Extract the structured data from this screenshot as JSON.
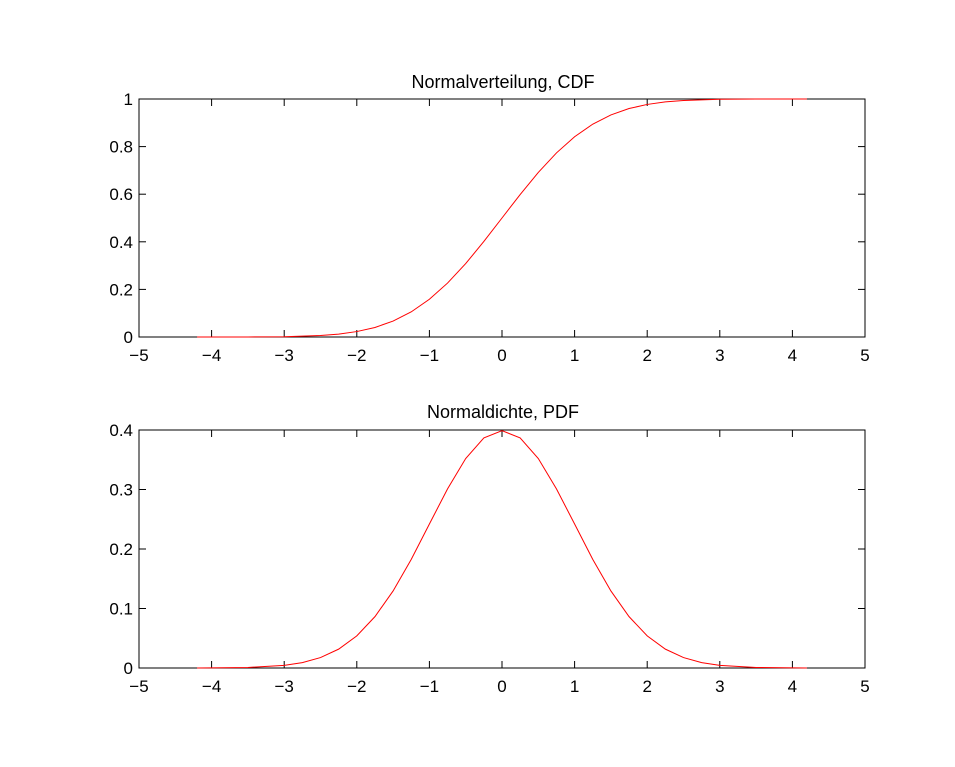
{
  "chart_data": [
    {
      "type": "line",
      "title": "Normalverteilung, CDF",
      "xlabel": "",
      "ylabel": "",
      "xlim": [
        -5,
        5
      ],
      "ylim": [
        0,
        1
      ],
      "grid": false,
      "x_ticks": [
        -5,
        -4,
        -3,
        -2,
        -1,
        0,
        1,
        2,
        3,
        4,
        5
      ],
      "x_tick_labels": [
        "−5",
        "−4",
        "−3",
        "−2",
        "−1",
        "0",
        "1",
        "2",
        "3",
        "4",
        "5"
      ],
      "y_ticks": [
        0,
        0.2,
        0.4,
        0.6,
        0.8,
        1
      ],
      "y_tick_labels": [
        "0",
        "0.2",
        "0.4",
        "0.6",
        "0.8",
        "1"
      ],
      "series": [
        {
          "color": "#ff0000",
          "x": [
            -4.2,
            -3.5,
            -3,
            -2.5,
            -2.25,
            -2,
            -1.75,
            -1.5,
            -1.25,
            -1,
            -0.75,
            -0.5,
            -0.25,
            0,
            0.25,
            0.5,
            0.75,
            1,
            1.25,
            1.5,
            1.75,
            2,
            2.25,
            2.5,
            3,
            3.5,
            4.2
          ],
          "y": [
            0.0,
            0.0002,
            0.0013,
            0.0062,
            0.0122,
            0.0228,
            0.0401,
            0.0668,
            0.1056,
            0.1587,
            0.2266,
            0.3085,
            0.4013,
            0.5,
            0.5987,
            0.6915,
            0.7734,
            0.8413,
            0.8944,
            0.9332,
            0.9599,
            0.9772,
            0.9878,
            0.9938,
            0.9987,
            0.9998,
            1.0
          ]
        }
      ]
    },
    {
      "type": "line",
      "title": "Normaldichte, PDF",
      "xlabel": "",
      "ylabel": "",
      "xlim": [
        -5,
        5
      ],
      "ylim": [
        0,
        0.4
      ],
      "grid": false,
      "x_ticks": [
        -5,
        -4,
        -3,
        -2,
        -1,
        0,
        1,
        2,
        3,
        4,
        5
      ],
      "x_tick_labels": [
        "−5",
        "−4",
        "−3",
        "−2",
        "−1",
        "0",
        "1",
        "2",
        "3",
        "4",
        "5"
      ],
      "y_ticks": [
        0,
        0.1,
        0.2,
        0.3,
        0.4
      ],
      "y_tick_labels": [
        "0",
        "0.1",
        "0.2",
        "0.3",
        "0.4"
      ],
      "series": [
        {
          "color": "#ff0000",
          "x": [
            -4.2,
            -3.5,
            -3,
            -2.75,
            -2.5,
            -2.25,
            -2,
            -1.75,
            -1.5,
            -1.25,
            -1,
            -0.75,
            -0.5,
            -0.25,
            0,
            0.25,
            0.5,
            0.75,
            1,
            1.25,
            1.5,
            1.75,
            2,
            2.25,
            2.5,
            2.75,
            3,
            3.5,
            4.2
          ],
          "y": [
            0.0001,
            0.0009,
            0.0044,
            0.0091,
            0.0175,
            0.0317,
            0.054,
            0.0863,
            0.1295,
            0.1826,
            0.242,
            0.3011,
            0.3521,
            0.3867,
            0.3989,
            0.3867,
            0.3521,
            0.3011,
            0.242,
            0.1826,
            0.1295,
            0.0863,
            0.054,
            0.0317,
            0.0175,
            0.0091,
            0.0044,
            0.0009,
            0.0001
          ]
        }
      ]
    }
  ]
}
